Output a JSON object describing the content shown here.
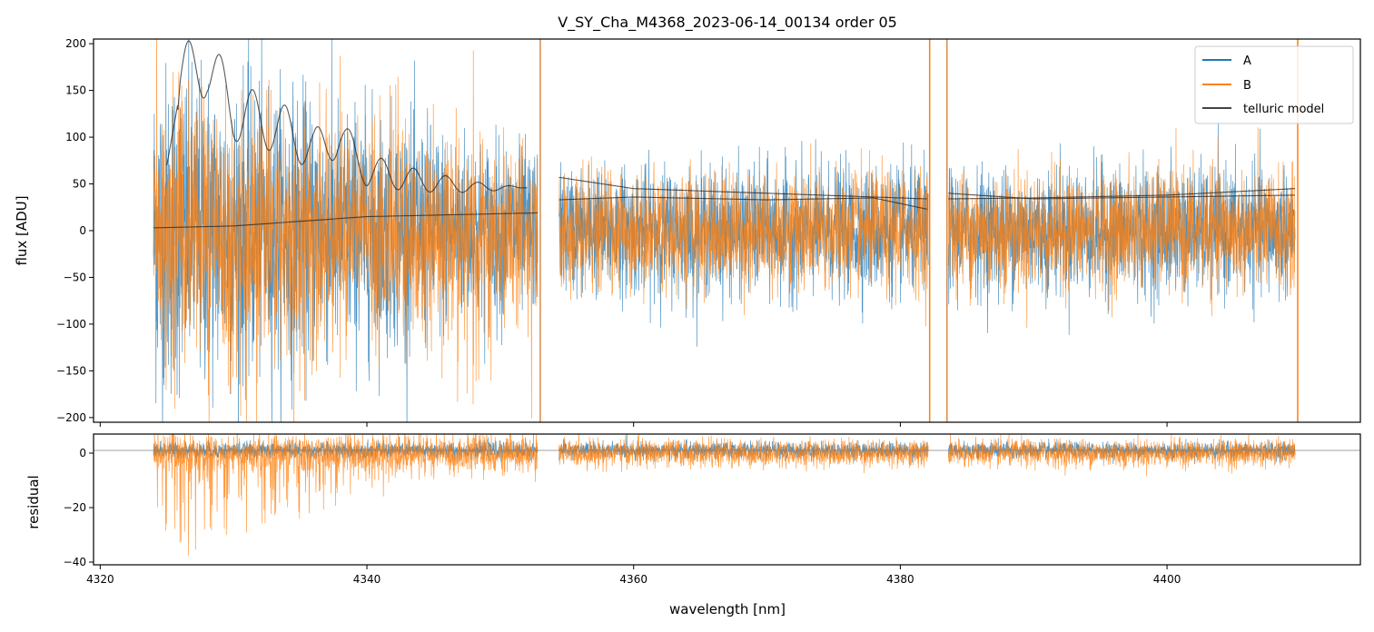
{
  "chart_data": {
    "type": "line",
    "title": "V_SY_Cha_M4368_2023-06-14_00134  order 05",
    "xlabel": "wavelength [nm]",
    "xlim": [
      4319.5,
      4414.5
    ],
    "xticks": [
      4320,
      4340,
      4360,
      4380,
      4400
    ],
    "colors": {
      "A": "#1f77b4",
      "B": "#ff7f0e",
      "telluric": "#000000",
      "zero_line": "#808080"
    },
    "segments": [
      [
        4324.0,
        4352.8
      ],
      [
        4354.4,
        4382.1
      ],
      [
        4383.6,
        4409.6
      ]
    ],
    "spikes": [
      4353.0,
      4382.2,
      4383.5,
      4409.8
    ],
    "panels": [
      {
        "name": "flux",
        "ylabel": "flux [ADU]",
        "ylim": [
          -205,
          205
        ],
        "yticks": [
          -200,
          -150,
          -100,
          -50,
          0,
          50,
          100,
          150,
          200
        ],
        "series": [
          {
            "name": "A",
            "color": "#1f77b4",
            "noise_sigma_near_zero": 30,
            "mean": 0
          },
          {
            "name": "B",
            "color": "#ff7f0e",
            "noise_sigma_near_zero": 28,
            "mean": 0
          }
        ],
        "telluric_upper": [
          [
            4325,
            70
          ],
          [
            4326,
            150
          ],
          [
            4328,
            170
          ],
          [
            4330,
            120
          ],
          [
            4332,
            110
          ],
          [
            4334,
            100
          ],
          [
            4336,
            80
          ],
          [
            4338,
            95
          ],
          [
            4340,
            60
          ],
          [
            4344,
            50
          ],
          [
            4348,
            45
          ],
          [
            4352,
            46
          ],
          [
            4354.4,
            57
          ],
          [
            4360,
            45
          ],
          [
            4370,
            40
          ],
          [
            4382,
            34
          ],
          [
            4383.6,
            34
          ],
          [
            4390,
            35
          ],
          [
            4400,
            38
          ],
          [
            4409.6,
            45
          ]
        ],
        "telluric_lower": [
          [
            4324,
            3
          ],
          [
            4330,
            5
          ],
          [
            4340,
            15
          ],
          [
            4352.8,
            19
          ],
          [
            4354.4,
            33
          ],
          [
            4360,
            36
          ],
          [
            4370,
            33
          ],
          [
            4378,
            35
          ],
          [
            4382,
            23
          ],
          [
            4383.6,
            40
          ],
          [
            4390,
            34
          ],
          [
            4400,
            36
          ],
          [
            4409.6,
            38
          ]
        ]
      },
      {
        "name": "residual",
        "ylabel": "residual",
        "ylim": [
          -41,
          7
        ],
        "yticks": [
          -40,
          -20,
          0
        ],
        "zero_line": 1,
        "series": [
          {
            "name": "A",
            "color": "#1f77b4",
            "noise_sigma_near_zero": 1.5,
            "mean": 1
          },
          {
            "name": "B",
            "color": "#ff7f0e",
            "noise_sigma_near_zero": 2.5,
            "mean": 0
          }
        ]
      }
    ],
    "legend": {
      "position": "upper right",
      "entries": [
        {
          "label": "A",
          "color": "#1f77b4"
        },
        {
          "label": "B",
          "color": "#ff7f0e"
        },
        {
          "label": "telluric model",
          "color": "#444444"
        }
      ]
    }
  }
}
